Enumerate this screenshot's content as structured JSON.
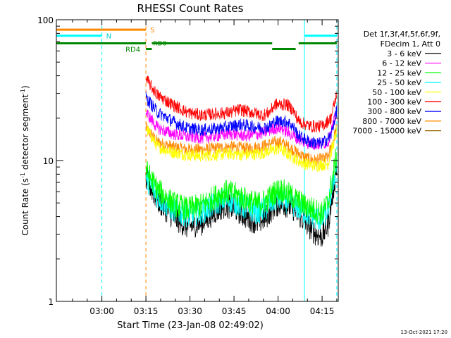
{
  "chart_data": {
    "type": "line",
    "title": "RHESSI Count Rates",
    "xlabel": "Start Time (23-Jan-08 02:49:02)",
    "ylabel_main": "Count Rate (s",
    "ylabel_sup1": "-1",
    "ylabel_mid": " detector segment",
    "ylabel_sup2": "-1",
    "ylabel_end": ")",
    "yscale": "log",
    "ylim": [
      1,
      100
    ],
    "xlim_minutes": [
      -4.5,
      91.5
    ],
    "x_ticks": [
      {
        "label": "03:00",
        "t": 11
      },
      {
        "label": "03:15",
        "t": 26
      },
      {
        "label": "03:30",
        "t": 41
      },
      {
        "label": "03:45",
        "t": 56
      },
      {
        "label": "04:00",
        "t": 71
      },
      {
        "label": "04:15",
        "t": 86
      }
    ],
    "y_ticks": [
      {
        "label": "1",
        "v": 1
      },
      {
        "label": "10",
        "v": 10
      },
      {
        "label": "100",
        "v": 100
      }
    ],
    "legend_header": [
      "Det 1f,3f,4f,5f,6f,9f,",
      "FDecim 1, Att 0"
    ],
    "legend_placement": "right",
    "series": [
      {
        "name": "3 - 6 keV",
        "color": "#000000",
        "points": [
          [
            26,
            7.5
          ],
          [
            30,
            5.2
          ],
          [
            35,
            4.0
          ],
          [
            40,
            3.4
          ],
          [
            45,
            3.6
          ],
          [
            50,
            4.4
          ],
          [
            53,
            4.8
          ],
          [
            56,
            4.6
          ],
          [
            60,
            4.0
          ],
          [
            64,
            3.6
          ],
          [
            67,
            4.0
          ],
          [
            70,
            4.8
          ],
          [
            72,
            5.0
          ],
          [
            76,
            4.6
          ],
          [
            80,
            3.7
          ],
          [
            84,
            3.0
          ],
          [
            86,
            2.9
          ],
          [
            88,
            3.5
          ],
          [
            91,
            9.0
          ]
        ]
      },
      {
        "name": "6 - 12 keV",
        "color": "#ff00ff",
        "points": [
          [
            26,
            22
          ],
          [
            30,
            17
          ],
          [
            35,
            15.5
          ],
          [
            40,
            14.8
          ],
          [
            45,
            14.5
          ],
          [
            50,
            15
          ],
          [
            55,
            15.5
          ],
          [
            60,
            15
          ],
          [
            65,
            15.5
          ],
          [
            70,
            17
          ],
          [
            72,
            17
          ],
          [
            76,
            15
          ],
          [
            80,
            13.5
          ],
          [
            84,
            13
          ],
          [
            88,
            13.5
          ],
          [
            91,
            22
          ]
        ]
      },
      {
        "name": "12 - 25 keV",
        "color": "#00ff00",
        "points": [
          [
            26,
            8.5
          ],
          [
            30,
            6.2
          ],
          [
            35,
            5.0
          ],
          [
            40,
            4.5
          ],
          [
            45,
            4.8
          ],
          [
            50,
            5.6
          ],
          [
            53,
            6.0
          ],
          [
            56,
            5.8
          ],
          [
            60,
            5.3
          ],
          [
            64,
            4.9
          ],
          [
            67,
            5.2
          ],
          [
            70,
            6.0
          ],
          [
            72,
            6.2
          ],
          [
            76,
            5.5
          ],
          [
            80,
            4.8
          ],
          [
            84,
            4.4
          ],
          [
            86,
            4.2
          ],
          [
            88,
            5.0
          ],
          [
            91,
            11
          ]
        ]
      },
      {
        "name": "25 - 50 keV",
        "color": "#00ffff",
        "points": [
          [
            26,
            7.5
          ],
          [
            30,
            5.5
          ],
          [
            35,
            4.5
          ],
          [
            40,
            4.1
          ],
          [
            45,
            4.3
          ],
          [
            50,
            5.0
          ],
          [
            53,
            5.3
          ],
          [
            56,
            5.1
          ],
          [
            60,
            4.6
          ],
          [
            64,
            4.3
          ],
          [
            67,
            4.6
          ],
          [
            70,
            5.3
          ],
          [
            72,
            5.4
          ],
          [
            76,
            4.9
          ],
          [
            80,
            4.3
          ],
          [
            84,
            3.9
          ],
          [
            86,
            3.8
          ],
          [
            88,
            4.5
          ],
          [
            91,
            9.5
          ]
        ]
      },
      {
        "name": "50 - 100 keV",
        "color": "#ffff00",
        "points": [
          [
            26,
            17
          ],
          [
            30,
            12.5
          ],
          [
            35,
            11.5
          ],
          [
            40,
            11
          ],
          [
            45,
            10.8
          ],
          [
            50,
            11
          ],
          [
            55,
            11.2
          ],
          [
            60,
            11
          ],
          [
            65,
            11.2
          ],
          [
            70,
            12
          ],
          [
            72,
            12
          ],
          [
            76,
            10.5
          ],
          [
            80,
            9.5
          ],
          [
            84,
            9.2
          ],
          [
            88,
            9.5
          ],
          [
            91,
            16
          ]
        ]
      },
      {
        "name": "100 - 300 keV",
        "color": "#ff0000",
        "points": [
          [
            26,
            38
          ],
          [
            30,
            29
          ],
          [
            35,
            25
          ],
          [
            40,
            22
          ],
          [
            45,
            21
          ],
          [
            50,
            21.5
          ],
          [
            55,
            22
          ],
          [
            58,
            23
          ],
          [
            62,
            22
          ],
          [
            66,
            21
          ],
          [
            68,
            22
          ],
          [
            70,
            25
          ],
          [
            74,
            25
          ],
          [
            76,
            23
          ],
          [
            78,
            19
          ],
          [
            82,
            17.5
          ],
          [
            86,
            17.5
          ],
          [
            89,
            20
          ],
          [
            91,
            30
          ]
        ]
      },
      {
        "name": "300 - 800 keV",
        "color": "#0000ff",
        "points": [
          [
            26,
            28
          ],
          [
            30,
            22
          ],
          [
            35,
            19
          ],
          [
            40,
            17
          ],
          [
            45,
            16.5
          ],
          [
            50,
            16.8
          ],
          [
            55,
            17.5
          ],
          [
            58,
            18
          ],
          [
            62,
            17.5
          ],
          [
            66,
            17
          ],
          [
            68,
            17.5
          ],
          [
            70,
            19
          ],
          [
            74,
            19
          ],
          [
            76,
            17.5
          ],
          [
            78,
            15
          ],
          [
            82,
            13.5
          ],
          [
            86,
            13.2
          ],
          [
            89,
            15
          ],
          [
            91,
            23
          ]
        ]
      },
      {
        "name": "800 - 7000 keV",
        "color": "#ff8800",
        "points": [
          [
            26,
            17
          ],
          [
            30,
            13.5
          ],
          [
            35,
            12.5
          ],
          [
            40,
            12
          ],
          [
            45,
            12
          ],
          [
            50,
            12.2
          ],
          [
            55,
            12.5
          ],
          [
            60,
            12.2
          ],
          [
            65,
            12.5
          ],
          [
            70,
            13.5
          ],
          [
            72,
            13.5
          ],
          [
            76,
            12
          ],
          [
            80,
            10.5
          ],
          [
            84,
            10
          ],
          [
            88,
            10.5
          ],
          [
            91,
            17
          ]
        ]
      },
      {
        "name": "7000 - 15000 keV",
        "color": "#996600",
        "points": []
      }
    ],
    "state_bars": [
      {
        "label": "S",
        "color": "#ff8800",
        "t0": -4.5,
        "t1": 26,
        "v": 85
      },
      {
        "label": "N",
        "color": "#00ffff",
        "t0": -4.5,
        "t1": 11,
        "v": 77
      },
      {
        "label": "RD4",
        "color": "#008800",
        "t0": 26,
        "t1": 28
      },
      {
        "label": "RD0",
        "color": "#008800",
        "t0": -4.5,
        "t1": 91.5
      }
    ],
    "vlines": [
      {
        "t": -4.5,
        "color": "#00ffff",
        "dashed": false
      },
      {
        "t": 11,
        "color": "#00ffff",
        "dashed": true
      },
      {
        "t": 26,
        "color": "#ff8800",
        "dashed": true
      },
      {
        "t": 80,
        "color": "#00ffff",
        "dashed": false
      },
      {
        "t": 91,
        "color": "#00ffff",
        "dashed": true
      }
    ],
    "footer": "13-Oct-2021 17:20"
  }
}
